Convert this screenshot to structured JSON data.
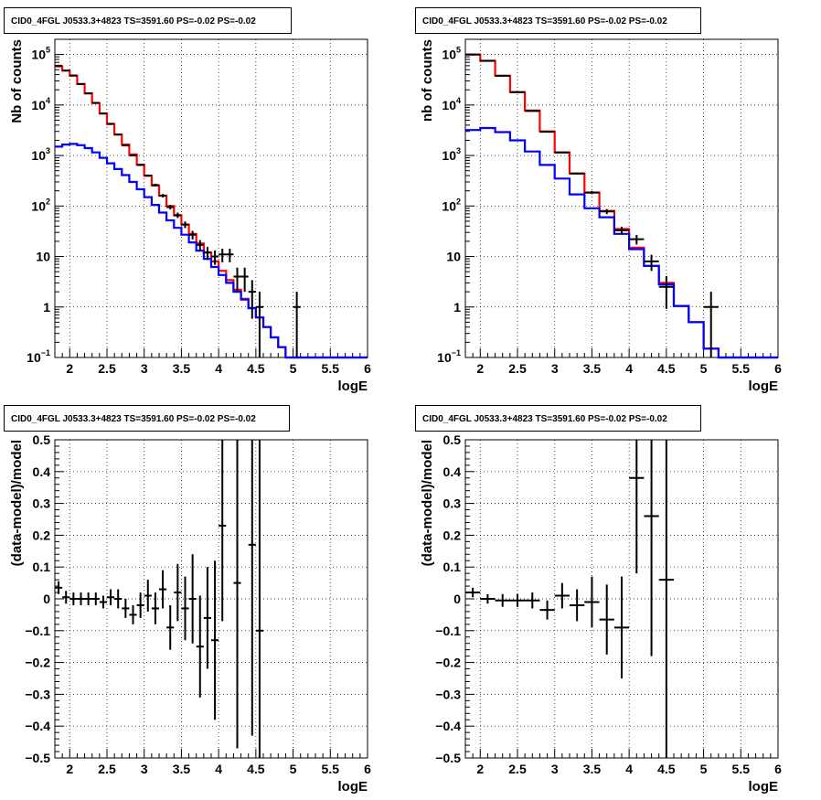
{
  "chart_data": [
    {
      "type": "line",
      "title": "CID0_4FGL J0533.3+4823 TS=3591.60 PS=-0.02 PS=-0.02",
      "xlabel": "logE",
      "ylabel": "Nb of counts",
      "xlim": [
        1.8,
        6.0
      ],
      "ylim": [
        0.1,
        200000
      ],
      "yscale": "log",
      "grid": true,
      "xticks": [
        "2",
        "2.5",
        "3",
        "3.5",
        "4",
        "4.5",
        "5",
        "5.5",
        "6"
      ],
      "yticks": [
        {
          "base": "10",
          "exp": "−1",
          "v": 0.1
        },
        {
          "base": "1",
          "exp": "",
          "v": 1
        },
        {
          "base": "10",
          "exp": "",
          "v": 10
        },
        {
          "base": "10",
          "exp": "2",
          "v": 100
        },
        {
          "base": "10",
          "exp": "3",
          "v": 1000
        },
        {
          "base": "10",
          "exp": "4",
          "v": 10000
        },
        {
          "base": "10",
          "exp": "5",
          "v": 100000
        }
      ],
      "bin_edges": [
        1.8,
        1.9,
        2.0,
        2.1,
        2.2,
        2.3,
        2.4,
        2.5,
        2.6,
        2.7,
        2.8,
        2.9,
        3.0,
        3.1,
        3.2,
        3.3,
        3.4,
        3.5,
        3.6,
        3.7,
        3.8,
        3.9,
        4.0,
        4.1,
        4.2,
        4.3,
        4.4,
        4.5,
        4.6,
        4.7,
        4.8,
        4.9,
        5.0,
        5.1,
        5.2,
        5.3,
        5.4,
        5.5,
        5.6,
        5.7,
        5.8,
        5.9,
        6.0
      ],
      "series": [
        {
          "color": "#ff0000",
          "values": [
            58000,
            48000,
            38000,
            26000,
            17000,
            11000,
            6800,
            4200,
            2600,
            1650,
            1050,
            660,
            400,
            255,
            160,
            100,
            65,
            43,
            28,
            18,
            12,
            8,
            5.2,
            3.4,
            2.2,
            1.45,
            0.95,
            0.62,
            0.4,
            0.25,
            0.16,
            0.1,
            0.1,
            0.1,
            0.1,
            0.1,
            0.1,
            0.1,
            0.1,
            0.1,
            0.1,
            0.1
          ]
        },
        {
          "color": "#0000ff",
          "values": [
            1500,
            1650,
            1700,
            1600,
            1400,
            1150,
            900,
            700,
            540,
            410,
            300,
            215,
            150,
            105,
            74,
            52,
            37,
            27,
            19,
            13,
            9,
            6.2,
            4.3,
            3.0,
            2.0,
            1.4,
            0.95,
            0.62,
            0.4,
            0.25,
            0.16,
            0.1,
            0.1,
            0.1,
            0.1,
            0.1,
            0.1,
            0.1,
            0.1,
            0.1,
            0.1,
            0.1
          ]
        }
      ],
      "data_points": [
        {
          "x": 1.85,
          "y": 60000
        },
        {
          "x": 1.95,
          "y": 48000
        },
        {
          "x": 2.05,
          "y": 38500
        },
        {
          "x": 2.15,
          "y": 26000
        },
        {
          "x": 2.25,
          "y": 17000
        },
        {
          "x": 2.35,
          "y": 11000
        },
        {
          "x": 2.45,
          "y": 6800
        },
        {
          "x": 2.55,
          "y": 4250
        },
        {
          "x": 2.65,
          "y": 2600
        },
        {
          "x": 2.75,
          "y": 1580
        },
        {
          "x": 2.85,
          "y": 1000
        },
        {
          "x": 2.95,
          "y": 650
        },
        {
          "x": 3.05,
          "y": 400
        },
        {
          "x": 3.15,
          "y": 260
        },
        {
          "x": 3.25,
          "y": 160
        },
        {
          "x": 3.35,
          "y": 95
        },
        {
          "x": 3.45,
          "y": 66
        },
        {
          "x": 3.55,
          "y": 43
        },
        {
          "x": 3.65,
          "y": 27
        },
        {
          "x": 3.75,
          "y": 17
        },
        {
          "x": 3.85,
          "y": 12
        },
        {
          "x": 3.95,
          "y": 10
        },
        {
          "x": 4.05,
          "y": 11
        },
        {
          "x": 4.15,
          "y": 11
        },
        {
          "x": 4.25,
          "y": 4
        },
        {
          "x": 4.35,
          "y": 4
        },
        {
          "x": 4.45,
          "y": 2
        },
        {
          "x": 4.55,
          "y": 1
        },
        {
          "x": 5.05,
          "y": 1
        }
      ]
    },
    {
      "type": "line",
      "title": "CID0_4FGL J0533.3+4823 TS=3591.60 PS=-0.02 PS=-0.02",
      "xlabel": "logE",
      "ylabel": "nb of counts",
      "xlim": [
        1.8,
        6.0
      ],
      "ylim": [
        0.1,
        200000
      ],
      "yscale": "log",
      "grid": true,
      "xticks": [
        "2",
        "2.5",
        "3",
        "3.5",
        "4",
        "4.5",
        "5",
        "5.5",
        "6"
      ],
      "yticks": [
        {
          "base": "10",
          "exp": "−1",
          "v": 0.1
        },
        {
          "base": "1",
          "exp": "",
          "v": 1
        },
        {
          "base": "10",
          "exp": "",
          "v": 10
        },
        {
          "base": "10",
          "exp": "2",
          "v": 100
        },
        {
          "base": "10",
          "exp": "3",
          "v": 1000
        },
        {
          "base": "10",
          "exp": "4",
          "v": 10000
        },
        {
          "base": "10",
          "exp": "5",
          "v": 100000
        }
      ],
      "bin_edges": [
        1.8,
        2.0,
        2.2,
        2.4,
        2.6,
        2.8,
        3.0,
        3.2,
        3.4,
        3.6,
        3.8,
        4.0,
        4.2,
        4.4,
        4.6,
        4.8,
        5.0,
        5.2,
        5.4,
        5.6,
        5.8,
        6.0
      ],
      "series": [
        {
          "color": "#ff0000",
          "values": [
            100000,
            75000,
            38000,
            18000,
            7800,
            3000,
            1150,
            440,
            185,
            80,
            35,
            15,
            6.5,
            3.0,
            1.05,
            0.5,
            0.15,
            0.1,
            0.1,
            0.1,
            0.1
          ]
        },
        {
          "color": "#0000ff",
          "values": [
            3200,
            3500,
            2900,
            2000,
            1200,
            650,
            350,
            170,
            90,
            60,
            28,
            14,
            6.5,
            2.8,
            1.05,
            0.5,
            0.15,
            0.1,
            0.1,
            0.1,
            0.1
          ]
        }
      ],
      "data_points": [
        {
          "x": 1.9,
          "y": 100000
        },
        {
          "x": 2.1,
          "y": 75000
        },
        {
          "x": 2.3,
          "y": 38000
        },
        {
          "x": 2.5,
          "y": 18000
        },
        {
          "x": 2.7,
          "y": 7600
        },
        {
          "x": 2.9,
          "y": 2950
        },
        {
          "x": 3.1,
          "y": 1150
        },
        {
          "x": 3.3,
          "y": 440
        },
        {
          "x": 3.5,
          "y": 185
        },
        {
          "x": 3.7,
          "y": 78
        },
        {
          "x": 3.9,
          "y": 33
        },
        {
          "x": 4.1,
          "y": 22
        },
        {
          "x": 4.3,
          "y": 8
        },
        {
          "x": 4.5,
          "y": 2.5
        },
        {
          "x": 5.1,
          "y": 1
        }
      ]
    },
    {
      "type": "scatter",
      "title": "CID0_4FGL J0533.3+4823 TS=3591.60 PS=-0.02 PS=-0.02",
      "xlabel": "logE",
      "ylabel": "(data-model)/model",
      "xlim": [
        1.8,
        6.0
      ],
      "ylim": [
        -0.5,
        0.5
      ],
      "yscale": "linear",
      "grid": true,
      "xticks": [
        "2",
        "2.5",
        "3",
        "3.5",
        "4",
        "4.5",
        "5",
        "5.5",
        "6"
      ],
      "yticks": [
        "−0.5",
        "−0.4",
        "−0.3",
        "−0.2",
        "−0.1",
        "0",
        "0.1",
        "0.2",
        "0.3",
        "0.4",
        "0.5"
      ],
      "bin_width": 0.1,
      "points": [
        {
          "x": 1.85,
          "y": 0.035,
          "err": 0.02
        },
        {
          "x": 1.95,
          "y": 0.005,
          "err": 0.02
        },
        {
          "x": 2.05,
          "y": 0.0,
          "err": 0.02
        },
        {
          "x": 2.15,
          "y": 0.0,
          "err": 0.02
        },
        {
          "x": 2.25,
          "y": 0.0,
          "err": 0.02
        },
        {
          "x": 2.35,
          "y": 0.0,
          "err": 0.02
        },
        {
          "x": 2.45,
          "y": -0.01,
          "err": 0.02
        },
        {
          "x": 2.55,
          "y": 0.005,
          "err": 0.025
        },
        {
          "x": 2.65,
          "y": 0.0,
          "err": 0.03
        },
        {
          "x": 2.75,
          "y": -0.03,
          "err": 0.03
        },
        {
          "x": 2.85,
          "y": -0.05,
          "err": 0.03
        },
        {
          "x": 2.95,
          "y": -0.02,
          "err": 0.04
        },
        {
          "x": 3.05,
          "y": 0.01,
          "err": 0.05
        },
        {
          "x": 3.15,
          "y": -0.03,
          "err": 0.05
        },
        {
          "x": 3.25,
          "y": 0.03,
          "err": 0.06
        },
        {
          "x": 3.35,
          "y": -0.09,
          "err": 0.07
        },
        {
          "x": 3.45,
          "y": 0.02,
          "err": 0.09
        },
        {
          "x": 3.55,
          "y": -0.03,
          "err": 0.1
        },
        {
          "x": 3.65,
          "y": 0.0,
          "err": 0.14
        },
        {
          "x": 3.75,
          "y": -0.15,
          "err": 0.16
        },
        {
          "x": 3.85,
          "y": -0.06,
          "err": 0.16
        },
        {
          "x": 3.95,
          "y": -0.13,
          "err": 0.25
        },
        {
          "x": 4.05,
          "y": 0.23,
          "err": 0.3
        },
        {
          "x": 4.25,
          "y": 0.05,
          "err": 0.52
        },
        {
          "x": 4.45,
          "y": 0.17,
          "err": 0.6
        },
        {
          "x": 4.55,
          "y": -0.1,
          "err": 0.65
        }
      ]
    },
    {
      "type": "scatter",
      "title": "CID0_4FGL J0533.3+4823 TS=3591.60 PS=-0.02 PS=-0.02",
      "xlabel": "logE",
      "ylabel": "(data-model)/model",
      "xlim": [
        1.8,
        6.0
      ],
      "ylim": [
        -0.5,
        0.5
      ],
      "yscale": "linear",
      "grid": true,
      "xticks": [
        "2",
        "2.5",
        "3",
        "3.5",
        "4",
        "4.5",
        "5",
        "5.5",
        "6"
      ],
      "yticks": [
        "−0.5",
        "−0.4",
        "−0.3",
        "−0.2",
        "−0.1",
        "0",
        "0.1",
        "0.2",
        "0.3",
        "0.4",
        "0.5"
      ],
      "bin_width": 0.2,
      "points": [
        {
          "x": 1.9,
          "y": 0.02,
          "err": 0.015
        },
        {
          "x": 2.1,
          "y": 0.0,
          "err": 0.015
        },
        {
          "x": 2.3,
          "y": -0.005,
          "err": 0.02
        },
        {
          "x": 2.5,
          "y": -0.005,
          "err": 0.02
        },
        {
          "x": 2.7,
          "y": -0.005,
          "err": 0.025
        },
        {
          "x": 2.9,
          "y": -0.035,
          "err": 0.03
        },
        {
          "x": 3.1,
          "y": 0.01,
          "err": 0.04
        },
        {
          "x": 3.3,
          "y": -0.02,
          "err": 0.05
        },
        {
          "x": 3.5,
          "y": -0.01,
          "err": 0.08
        },
        {
          "x": 3.7,
          "y": -0.065,
          "err": 0.11
        },
        {
          "x": 3.9,
          "y": -0.09,
          "err": 0.16
        },
        {
          "x": 4.1,
          "y": 0.38,
          "err": 0.3
        },
        {
          "x": 4.3,
          "y": 0.26,
          "err": 0.44
        },
        {
          "x": 4.5,
          "y": 0.06,
          "err": 0.58
        }
      ]
    }
  ]
}
